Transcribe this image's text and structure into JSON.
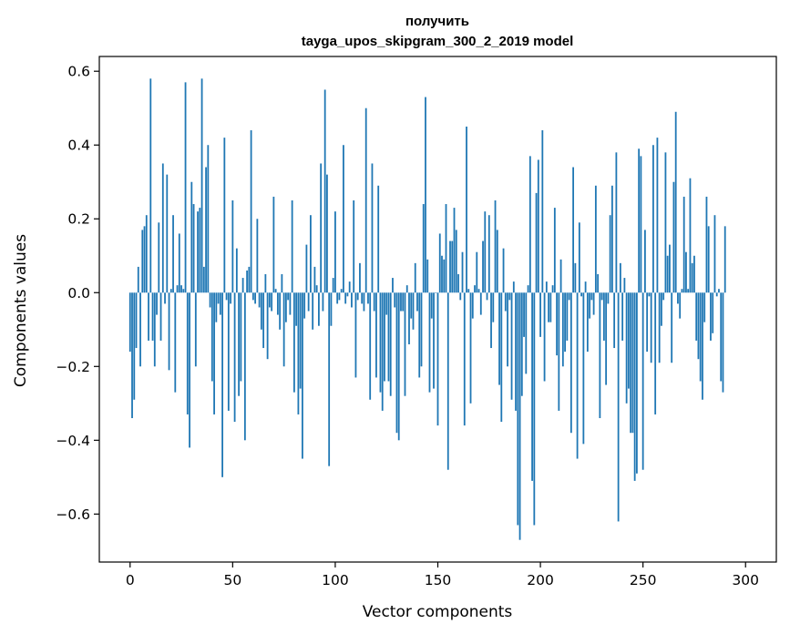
{
  "chart_data": {
    "type": "bar",
    "title_line1": "получить",
    "title_line2": "tayga_upos_skipgram_300_2_2019 model",
    "xlabel": "Vector components",
    "ylabel": "Components values",
    "xlim": [
      -15,
      315
    ],
    "ylim": [
      -0.73,
      0.64
    ],
    "xticks": [
      0,
      50,
      100,
      150,
      200,
      250,
      300
    ],
    "xtick_labels": [
      "0",
      "50",
      "100",
      "150",
      "200",
      "250",
      "300"
    ],
    "yticks": [
      -0.6,
      -0.4,
      -0.2,
      0.0,
      0.2,
      0.4,
      0.6
    ],
    "ytick_labels": [
      "−0.6",
      "−0.4",
      "−0.2",
      "0.0",
      "0.2",
      "0.4",
      "0.6"
    ],
    "grid": false,
    "bar_color": "#1f77b4",
    "values": [
      -0.16,
      -0.34,
      -0.29,
      -0.15,
      0.07,
      -0.2,
      0.17,
      0.18,
      0.21,
      -0.13,
      0.58,
      -0.13,
      -0.2,
      -0.06,
      0.19,
      -0.13,
      0.35,
      -0.03,
      0.32,
      -0.21,
      0.01,
      0.21,
      -0.27,
      0.02,
      0.16,
      0.02,
      0.01,
      0.57,
      -0.33,
      -0.42,
      0.3,
      0.24,
      -0.2,
      0.22,
      0.23,
      0.58,
      0.07,
      0.34,
      0.4,
      -0.04,
      -0.24,
      -0.33,
      -0.08,
      -0.03,
      -0.06,
      -0.5,
      0.42,
      -0.02,
      -0.32,
      -0.03,
      0.25,
      -0.35,
      0.12,
      -0.28,
      -0.24,
      0.04,
      -0.4,
      0.06,
      0.07,
      0.44,
      -0.02,
      -0.03,
      0.2,
      -0.04,
      -0.1,
      -0.15,
      0.05,
      -0.18,
      -0.04,
      -0.05,
      0.26,
      0.01,
      -0.06,
      -0.1,
      0.05,
      -0.2,
      -0.08,
      -0.02,
      -0.06,
      0.25,
      -0.27,
      -0.09,
      -0.33,
      -0.26,
      -0.45,
      -0.07,
      0.13,
      -0.05,
      0.21,
      -0.1,
      0.07,
      0.02,
      -0.09,
      0.35,
      -0.05,
      0.55,
      0.32,
      -0.47,
      -0.09,
      0.04,
      0.22,
      -0.03,
      -0.02,
      0.01,
      0.4,
      -0.03,
      -0.01,
      0.03,
      -0.04,
      0.25,
      -0.23,
      -0.02,
      0.08,
      -0.03,
      -0.05,
      0.5,
      -0.03,
      -0.29,
      0.35,
      -0.05,
      -0.23,
      0.29,
      -0.27,
      -0.32,
      -0.24,
      -0.06,
      -0.24,
      -0.28,
      0.04,
      -0.04,
      -0.38,
      -0.4,
      -0.05,
      -0.05,
      -0.28,
      0.02,
      -0.14,
      -0.07,
      -0.1,
      0.08,
      -0.05,
      -0.23,
      -0.2,
      0.24,
      0.53,
      0.09,
      -0.27,
      -0.07,
      -0.26,
      0.0,
      -0.36,
      0.16,
      0.1,
      0.09,
      0.24,
      -0.48,
      0.14,
      0.14,
      0.23,
      0.17,
      0.05,
      -0.02,
      0.11,
      -0.36,
      0.45,
      0.01,
      -0.3,
      -0.07,
      0.02,
      0.11,
      0.01,
      -0.06,
      0.14,
      0.22,
      -0.02,
      0.21,
      -0.15,
      -0.08,
      0.25,
      0.17,
      -0.25,
      -0.35,
      0.12,
      -0.05,
      -0.2,
      -0.02,
      -0.29,
      0.03,
      -0.32,
      -0.63,
      -0.67,
      -0.28,
      -0.12,
      -0.22,
      0.02,
      0.37,
      -0.51,
      -0.63,
      0.27,
      0.36,
      -0.12,
      0.44,
      -0.24,
      0.03,
      -0.08,
      -0.08,
      0.02,
      0.23,
      -0.17,
      -0.32,
      0.09,
      -0.2,
      -0.16,
      -0.13,
      -0.02,
      -0.38,
      0.34,
      0.08,
      -0.45,
      0.19,
      -0.01,
      -0.41,
      0.03,
      -0.16,
      -0.07,
      -0.02,
      -0.06,
      0.29,
      0.05,
      -0.34,
      -0.02,
      -0.13,
      -0.25,
      -0.03,
      0.21,
      0.29,
      -0.15,
      0.38,
      -0.62,
      0.08,
      -0.13,
      0.04,
      -0.3,
      -0.26,
      -0.38,
      -0.38,
      -0.51,
      -0.49,
      0.39,
      0.37,
      -0.48,
      0.17,
      -0.16,
      -0.01,
      -0.19,
      0.4,
      -0.33,
      0.42,
      -0.19,
      -0.09,
      -0.02,
      0.38,
      0.1,
      0.13,
      -0.19,
      0.3,
      0.49,
      -0.03,
      -0.07,
      0.01,
      0.26,
      0.11,
      0.01,
      0.31,
      0.08,
      0.1,
      -0.13,
      -0.18,
      -0.24,
      -0.29,
      -0.08,
      0.26,
      0.18,
      -0.13,
      -0.11,
      0.21,
      -0.01,
      0.01,
      -0.24,
      -0.27,
      0.18
    ]
  }
}
